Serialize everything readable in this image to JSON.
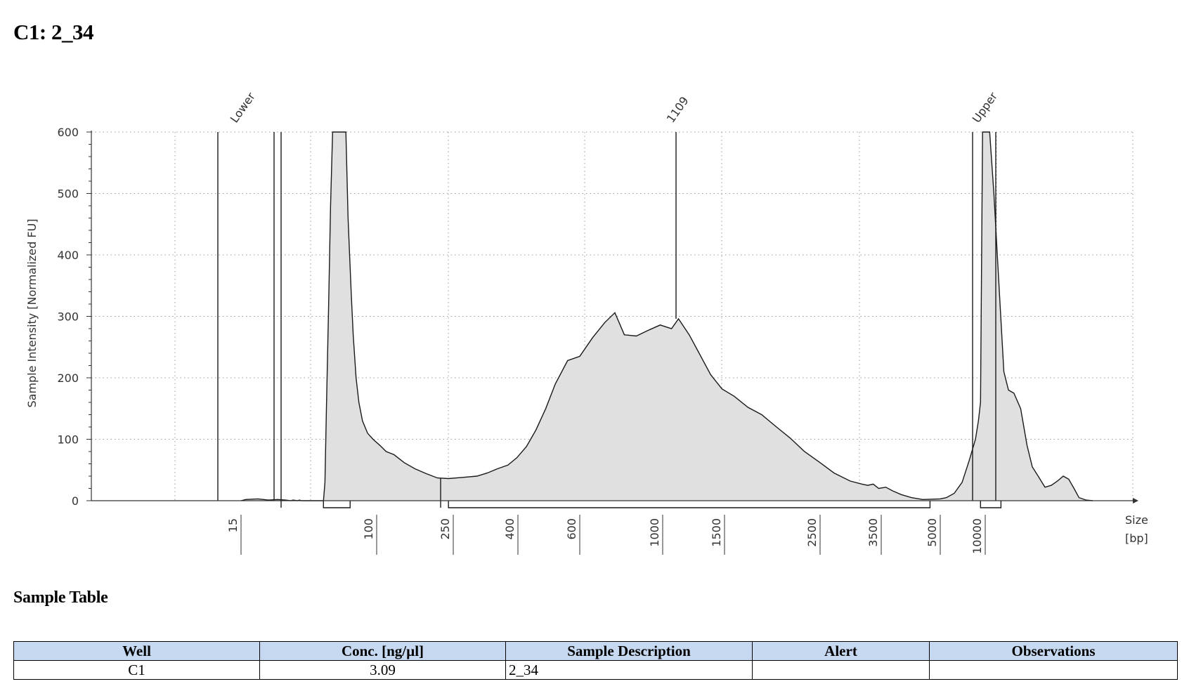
{
  "page": {
    "title": "C1: 2_34"
  },
  "chart_data": {
    "type": "line",
    "title": "",
    "xlabel": "Size\n[bp]",
    "xlabel_line1": "Size",
    "xlabel_line2": "[bp]",
    "ylabel": "Sample Intensity [Normalized FU]",
    "ylim": [
      0,
      600
    ],
    "y_ticks": [
      0,
      100,
      200,
      300,
      400,
      500,
      600
    ],
    "x_tick_labels": [
      "15",
      "100",
      "250",
      "400",
      "600",
      "1000",
      "1500",
      "2500",
      "3500",
      "5000",
      "10000"
    ],
    "grid": true,
    "peak_labels": [
      "Lower",
      "1109",
      "Upper"
    ],
    "trace": [
      {
        "x": 15,
        "y": 0
      },
      {
        "x": 16,
        "y": 2
      },
      {
        "x": 19,
        "y": 3
      },
      {
        "x": 22,
        "y": 1
      },
      {
        "x": 25,
        "y": 2
      },
      {
        "x": 28,
        "y": 1
      },
      {
        "x": 30,
        "y": 0
      },
      {
        "x": 31,
        "y": 1
      },
      {
        "x": 33,
        "y": 0
      },
      {
        "x": 34,
        "y": 1
      },
      {
        "x": 35,
        "y": 0
      },
      {
        "x": 47.5,
        "y": 0
      },
      {
        "x": 48.5,
        "y": 30
      },
      {
        "x": 49.5,
        "y": 150
      },
      {
        "x": 51,
        "y": 310
      },
      {
        "x": 52.5,
        "y": 480
      },
      {
        "x": 54,
        "y": 600
      },
      {
        "x": 62.5,
        "y": 600
      },
      {
        "x": 65,
        "y": 650
      },
      {
        "x": 67,
        "y": 460
      },
      {
        "x": 68.5,
        "y": 400
      },
      {
        "x": 70,
        "y": 340
      },
      {
        "x": 72,
        "y": 270
      },
      {
        "x": 75,
        "y": 200
      },
      {
        "x": 78,
        "y": 160
      },
      {
        "x": 82,
        "y": 130
      },
      {
        "x": 88,
        "y": 110
      },
      {
        "x": 95,
        "y": 100
      },
      {
        "x": 104,
        "y": 90
      },
      {
        "x": 112,
        "y": 80
      },
      {
        "x": 123,
        "y": 75
      },
      {
        "x": 139,
        "y": 62
      },
      {
        "x": 158,
        "y": 52
      },
      {
        "x": 181,
        "y": 44
      },
      {
        "x": 207,
        "y": 37
      },
      {
        "x": 236,
        "y": 36
      },
      {
        "x": 268,
        "y": 38
      },
      {
        "x": 297,
        "y": 40
      },
      {
        "x": 320,
        "y": 45
      },
      {
        "x": 345,
        "y": 52
      },
      {
        "x": 372,
        "y": 58
      },
      {
        "x": 397,
        "y": 70
      },
      {
        "x": 423,
        "y": 88
      },
      {
        "x": 450,
        "y": 115
      },
      {
        "x": 480,
        "y": 150
      },
      {
        "x": 511,
        "y": 190
      },
      {
        "x": 554,
        "y": 228
      },
      {
        "x": 600,
        "y": 235
      },
      {
        "x": 649,
        "y": 265
      },
      {
        "x": 700,
        "y": 290
      },
      {
        "x": 745,
        "y": 306
      },
      {
        "x": 790,
        "y": 270
      },
      {
        "x": 850,
        "y": 268
      },
      {
        "x": 920,
        "y": 278
      },
      {
        "x": 985,
        "y": 286
      },
      {
        "x": 1060,
        "y": 280
      },
      {
        "x": 1109,
        "y": 296
      },
      {
        "x": 1190,
        "y": 270
      },
      {
        "x": 1270,
        "y": 240
      },
      {
        "x": 1370,
        "y": 205
      },
      {
        "x": 1475,
        "y": 182
      },
      {
        "x": 1580,
        "y": 170
      },
      {
        "x": 1700,
        "y": 152
      },
      {
        "x": 1830,
        "y": 140
      },
      {
        "x": 1980,
        "y": 120
      },
      {
        "x": 2130,
        "y": 102
      },
      {
        "x": 2300,
        "y": 80
      },
      {
        "x": 2500,
        "y": 62
      },
      {
        "x": 2700,
        "y": 45
      },
      {
        "x": 2950,
        "y": 32
      },
      {
        "x": 3150,
        "y": 27
      },
      {
        "x": 3250,
        "y": 25
      },
      {
        "x": 3350,
        "y": 27
      },
      {
        "x": 3450,
        "y": 20
      },
      {
        "x": 3600,
        "y": 22
      },
      {
        "x": 3750,
        "y": 16
      },
      {
        "x": 3950,
        "y": 10
      },
      {
        "x": 4200,
        "y": 5
      },
      {
        "x": 4500,
        "y": 2
      },
      {
        "x": 5000,
        "y": 3
      },
      {
        "x": 5500,
        "y": 5
      },
      {
        "x": 6200,
        "y": 12
      },
      {
        "x": 7000,
        "y": 30
      },
      {
        "x": 7800,
        "y": 65
      },
      {
        "x": 8600,
        "y": 100
      },
      {
        "x": 9000,
        "y": 130
      },
      {
        "x": 9300,
        "y": 160
      },
      {
        "x": 9600,
        "y": 600
      },
      {
        "x": 10000,
        "y": 600
      },
      {
        "x": 10400,
        "y": 600
      },
      {
        "x": 10800,
        "y": 500
      },
      {
        "x": 11300,
        "y": 350
      },
      {
        "x": 11800,
        "y": 210
      },
      {
        "x": 12300,
        "y": 180
      },
      {
        "x": 12900,
        "y": 175
      },
      {
        "x": 13700,
        "y": 150
      },
      {
        "x": 14500,
        "y": 90
      },
      {
        "x": 15200,
        "y": 55
      },
      {
        "x": 16000,
        "y": 40
      },
      {
        "x": 17000,
        "y": 22
      },
      {
        "x": 18000,
        "y": 25
      },
      {
        "x": 19000,
        "y": 32
      },
      {
        "x": 20000,
        "y": 40
      },
      {
        "x": 21000,
        "y": 35
      },
      {
        "x": 22000,
        "y": 20
      },
      {
        "x": 23000,
        "y": 5
      },
      {
        "x": 24500,
        "y": 1
      },
      {
        "x": 26000,
        "y": 0
      }
    ],
    "region_brackets": [
      {
        "from": 47.5,
        "to": 69
      },
      {
        "from": 236,
        "to": 4700
      },
      {
        "from": 9300,
        "to": 11500
      }
    ]
  },
  "sample_table": {
    "heading": "Sample Table",
    "columns": [
      "Well",
      "Conc. [ng/µl]",
      "Sample Description",
      "Alert",
      "Observations"
    ],
    "rows": [
      [
        "C1",
        "3.09",
        "2_34",
        "",
        ""
      ]
    ]
  }
}
